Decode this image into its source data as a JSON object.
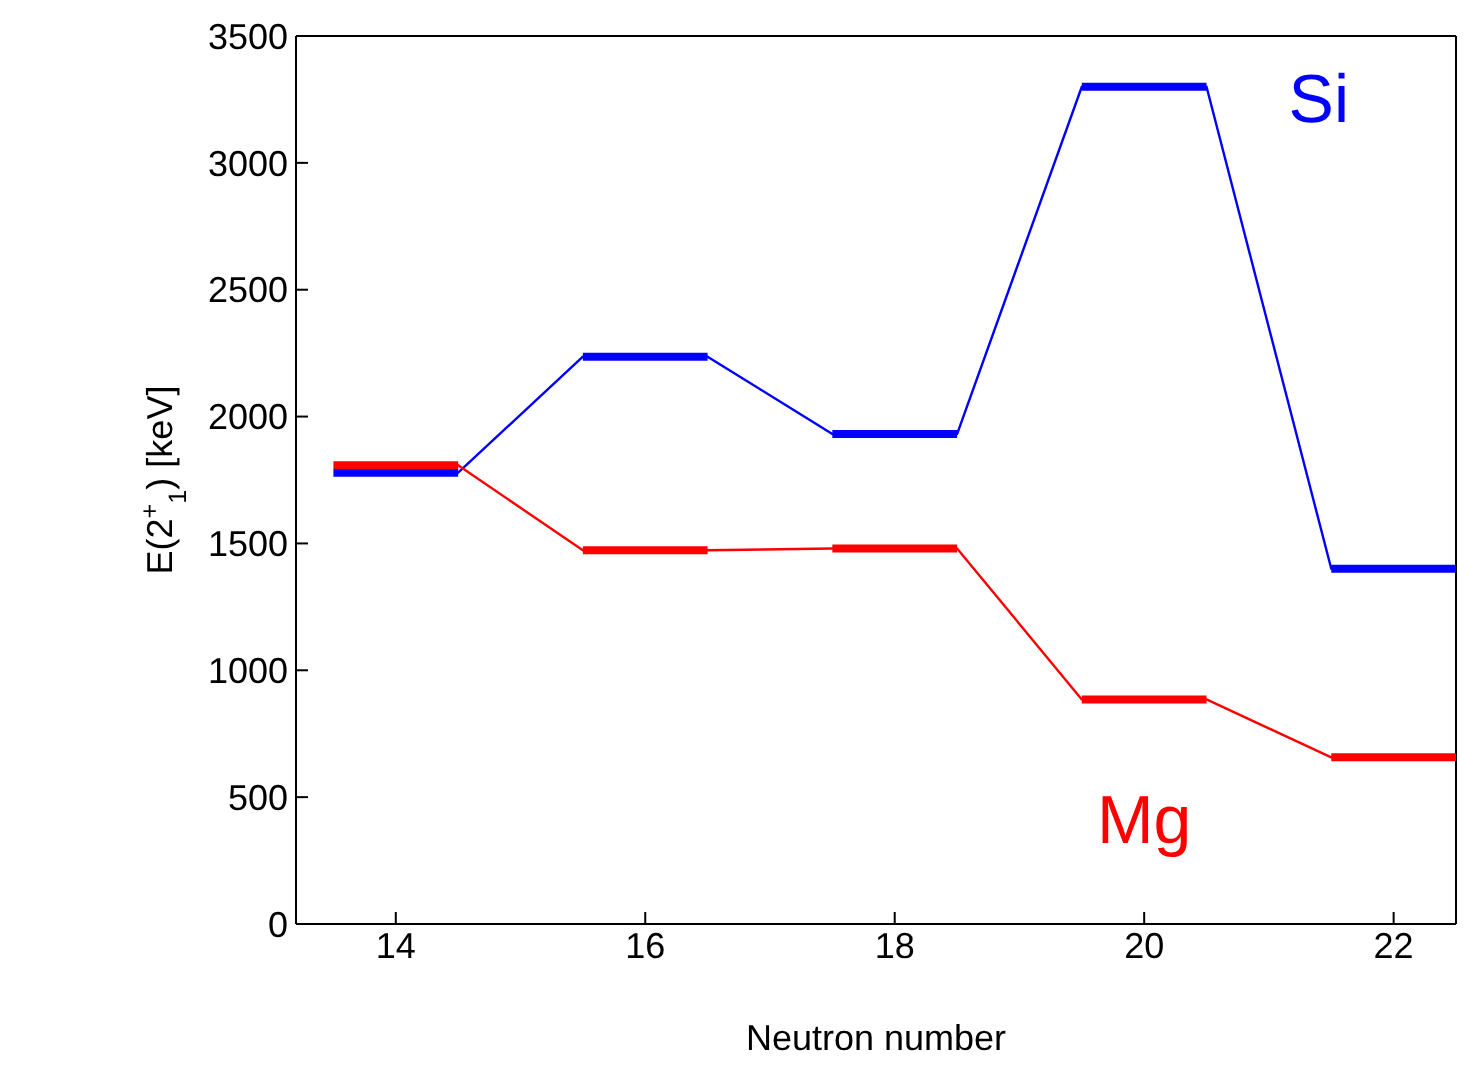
{
  "chart_data": {
    "type": "step",
    "xlabel": "Neutron number",
    "ylabel": "E(2$^{+}$$_{1}$) [keV]",
    "x": [
      14,
      16,
      18,
      20,
      22
    ],
    "series": [
      {
        "name": "Si",
        "color": "#0000ff",
        "values": [
          1779,
          2236,
          1931,
          3300,
          1400
        ],
        "xerrors": [
          0.5,
          0.5,
          0.5,
          0.5,
          0.5
        ]
      },
      {
        "name": "Mg",
        "color": "#ff0000",
        "values": [
          1808,
          1473,
          1480,
          885,
          657
        ],
        "xerrors": [
          0.5,
          0.5,
          0.5,
          0.5,
          0.5
        ]
      }
    ],
    "xlim": [
      13.2,
      22.5
    ],
    "xticks": [
      14,
      16,
      18,
      20,
      22
    ],
    "ylim": [
      0,
      3500
    ],
    "yticks": [
      0,
      500,
      1000,
      1500,
      2000,
      2500,
      3000,
      3500
    ],
    "grid": false,
    "legend": false
  }
}
